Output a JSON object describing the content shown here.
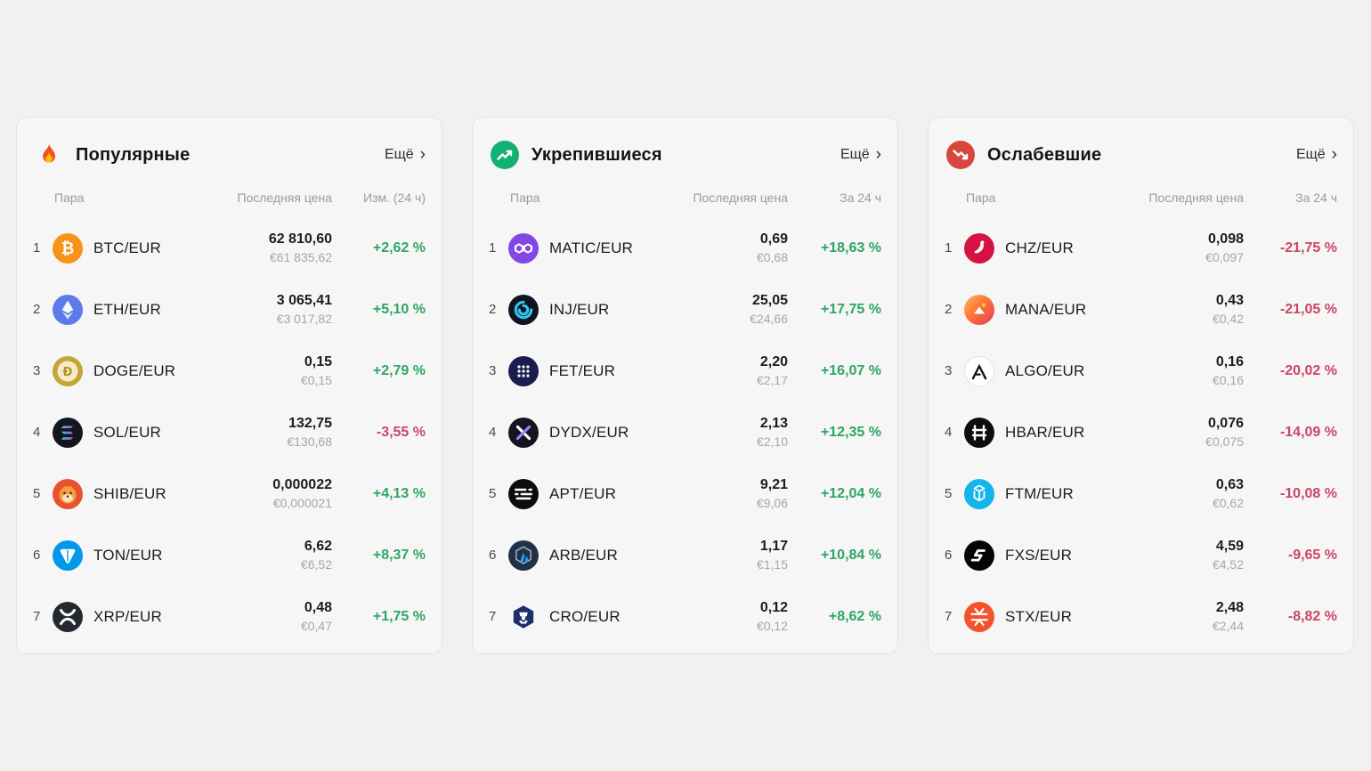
{
  "page": {
    "background": "#f0f1f0"
  },
  "colors": {
    "positive": "#2fa566",
    "negative": "#cc4666"
  },
  "icons": {
    "chevron_right": "›"
  },
  "cards": [
    {
      "title": "Популярные",
      "header_icon": "fire-icon",
      "more_label": "Ещё",
      "columns": {
        "pair": "Пара",
        "price": "Последняя цена",
        "change": "Изм. (24 ч)"
      },
      "rows": [
        {
          "rank": "1",
          "coin": "btc",
          "pair": "BTC/EUR",
          "price": "62 810,60",
          "price_eur": "€61 835,62",
          "change": "+2,62 %",
          "direction": "up"
        },
        {
          "rank": "2",
          "coin": "eth",
          "pair": "ETH/EUR",
          "price": "3 065,41",
          "price_eur": "€3 017,82",
          "change": "+5,10 %",
          "direction": "up"
        },
        {
          "rank": "3",
          "coin": "doge",
          "pair": "DOGE/EUR",
          "price": "0,15",
          "price_eur": "€0,15",
          "change": "+2,79 %",
          "direction": "up"
        },
        {
          "rank": "4",
          "coin": "sol",
          "pair": "SOL/EUR",
          "price": "132,75",
          "price_eur": "€130,68",
          "change": "-3,55 %",
          "direction": "down"
        },
        {
          "rank": "5",
          "coin": "shib",
          "pair": "SHIB/EUR",
          "price": "0,000022",
          "price_eur": "€0,000021",
          "change": "+4,13 %",
          "direction": "up"
        },
        {
          "rank": "6",
          "coin": "ton",
          "pair": "TON/EUR",
          "price": "6,62",
          "price_eur": "€6,52",
          "change": "+8,37 %",
          "direction": "up"
        },
        {
          "rank": "7",
          "coin": "xrp",
          "pair": "XRP/EUR",
          "price": "0,48",
          "price_eur": "€0,47",
          "change": "+1,75 %",
          "direction": "up"
        }
      ]
    },
    {
      "title": "Укрепившиеся",
      "header_icon": "trending-up-icon",
      "more_label": "Ещё",
      "columns": {
        "pair": "Пара",
        "price": "Последняя цена",
        "change": "За 24 ч"
      },
      "rows": [
        {
          "rank": "1",
          "coin": "matic",
          "pair": "MATIC/EUR",
          "price": "0,69",
          "price_eur": "€0,68",
          "change": "+18,63 %",
          "direction": "up"
        },
        {
          "rank": "2",
          "coin": "inj",
          "pair": "INJ/EUR",
          "price": "25,05",
          "price_eur": "€24,66",
          "change": "+17,75 %",
          "direction": "up"
        },
        {
          "rank": "3",
          "coin": "fet",
          "pair": "FET/EUR",
          "price": "2,20",
          "price_eur": "€2,17",
          "change": "+16,07 %",
          "direction": "up"
        },
        {
          "rank": "4",
          "coin": "dydx",
          "pair": "DYDX/EUR",
          "price": "2,13",
          "price_eur": "€2,10",
          "change": "+12,35 %",
          "direction": "up"
        },
        {
          "rank": "5",
          "coin": "apt",
          "pair": "APT/EUR",
          "price": "9,21",
          "price_eur": "€9,06",
          "change": "+12,04 %",
          "direction": "up"
        },
        {
          "rank": "6",
          "coin": "arb",
          "pair": "ARB/EUR",
          "price": "1,17",
          "price_eur": "€1,15",
          "change": "+10,84 %",
          "direction": "up"
        },
        {
          "rank": "7",
          "coin": "cro",
          "pair": "CRO/EUR",
          "price": "0,12",
          "price_eur": "€0,12",
          "change": "+8,62 %",
          "direction": "up"
        }
      ]
    },
    {
      "title": "Ослабевшие",
      "header_icon": "trending-down-icon",
      "more_label": "Ещё",
      "columns": {
        "pair": "Пара",
        "price": "Последняя цена",
        "change": "За 24 ч"
      },
      "rows": [
        {
          "rank": "1",
          "coin": "chz",
          "pair": "CHZ/EUR",
          "price": "0,098",
          "price_eur": "€0,097",
          "change": "-21,75 %",
          "direction": "down"
        },
        {
          "rank": "2",
          "coin": "mana",
          "pair": "MANA/EUR",
          "price": "0,43",
          "price_eur": "€0,42",
          "change": "-21,05 %",
          "direction": "down"
        },
        {
          "rank": "3",
          "coin": "algo",
          "pair": "ALGO/EUR",
          "price": "0,16",
          "price_eur": "€0,16",
          "change": "-20,02 %",
          "direction": "down"
        },
        {
          "rank": "4",
          "coin": "hbar",
          "pair": "HBAR/EUR",
          "price": "0,076",
          "price_eur": "€0,075",
          "change": "-14,09 %",
          "direction": "down"
        },
        {
          "rank": "5",
          "coin": "ftm",
          "pair": "FTM/EUR",
          "price": "0,63",
          "price_eur": "€0,62",
          "change": "-10,08 %",
          "direction": "down"
        },
        {
          "rank": "6",
          "coin": "fxs",
          "pair": "FXS/EUR",
          "price": "4,59",
          "price_eur": "€4,52",
          "change": "-9,65 %",
          "direction": "down"
        },
        {
          "rank": "7",
          "coin": "stx",
          "pair": "STX/EUR",
          "price": "2,48",
          "price_eur": "€2,44",
          "change": "-8,82 %",
          "direction": "down"
        }
      ]
    }
  ]
}
